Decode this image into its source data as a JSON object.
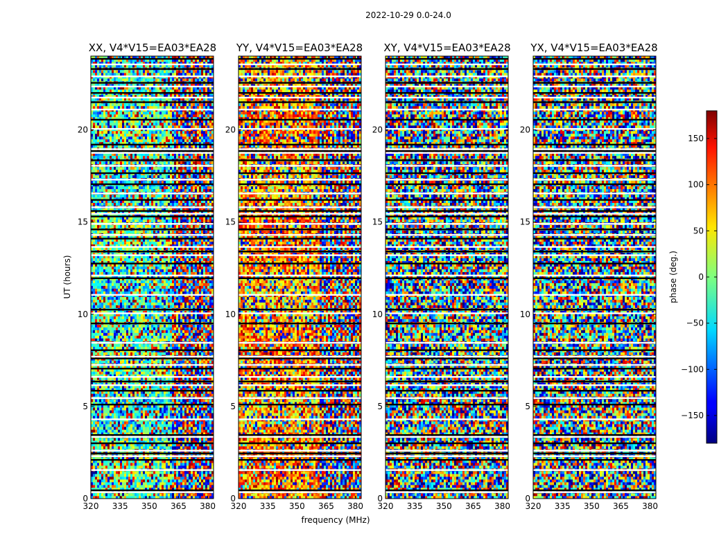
{
  "figure": {
    "suptitle": "2022-10-29 0.0-24.0"
  },
  "chart_data": [
    {
      "type": "heatmap",
      "title": "XX, V4*V15=EA03*EA28",
      "xlabel": "",
      "ylabel": "UT (hours)",
      "xlim": [
        320,
        383
      ],
      "ylim": [
        0,
        24
      ],
      "xticks": [
        "320",
        "335",
        "350",
        "365",
        "380"
      ],
      "yticks": [
        "0",
        "5",
        "10",
        "15",
        "20"
      ],
      "x": [
        320,
        335,
        350,
        365,
        380
      ],
      "y": [
        0,
        5,
        10,
        15,
        20
      ],
      "pattern": "coherent-left"
    },
    {
      "type": "heatmap",
      "title": "YY, V4*V15=EA03*EA28",
      "xlabel": "frequency (MHz)",
      "ylabel": "",
      "xlim": [
        320,
        383
      ],
      "ylim": [
        0,
        24
      ],
      "xticks": [
        "320",
        "335",
        "350",
        "365",
        "380"
      ],
      "yticks": [
        "0",
        "5",
        "10",
        "15",
        "20"
      ],
      "x": [
        320,
        335,
        350,
        365,
        380
      ],
      "y": [
        0,
        5,
        10,
        15,
        20
      ],
      "pattern": "coherent-left-warm"
    },
    {
      "type": "heatmap",
      "title": "XY, V4*V15=EA03*EA28",
      "xlabel": "",
      "ylabel": "",
      "xlim": [
        320,
        383
      ],
      "ylim": [
        0,
        24
      ],
      "xticks": [
        "320",
        "335",
        "350",
        "365",
        "380"
      ],
      "yticks": [
        "0",
        "5",
        "10",
        "15",
        "20"
      ],
      "x": [
        320,
        335,
        350,
        365,
        380
      ],
      "y": [
        0,
        5,
        10,
        15,
        20
      ],
      "pattern": "noise"
    },
    {
      "type": "heatmap",
      "title": "YX, V4*V15=EA03*EA28",
      "xlabel": "",
      "ylabel": "",
      "xlim": [
        320,
        383
      ],
      "ylim": [
        0,
        24
      ],
      "xticks": [
        "320",
        "335",
        "350",
        "365",
        "380"
      ],
      "yticks": [
        "0",
        "5",
        "10",
        "15",
        "20"
      ],
      "x": [
        320,
        335,
        350,
        365,
        380
      ],
      "y": [
        0,
        5,
        10,
        15,
        20
      ],
      "pattern": "noise"
    }
  ],
  "colorbar": {
    "label": "phase (deg.)",
    "range": [
      -180,
      180
    ],
    "ticks": [
      150,
      100,
      50,
      0,
      -50,
      -100,
      -150
    ],
    "tick_labels": [
      "150",
      "100",
      "50",
      "0",
      "−50",
      "−100",
      "−150"
    ],
    "colormap": "jet"
  },
  "flagged_rows_hours": [
    0.35,
    0.45,
    1.55,
    2.1,
    2.3,
    2.45,
    2.6,
    3.0,
    3.35,
    3.45,
    4.3,
    5.1,
    5.45,
    5.85,
    6.15,
    6.35,
    6.6,
    7.05,
    7.25,
    7.6,
    7.7,
    8.05,
    8.45,
    9.5,
    10.05,
    10.25,
    11.05,
    11.95,
    12.1,
    12.75,
    13.2,
    13.4,
    13.65,
    14.1,
    14.3,
    14.6,
    14.9,
    15.3,
    15.45,
    15.6,
    15.8,
    16.2,
    16.55,
    17.05,
    17.3,
    17.65,
    18.05,
    18.35,
    18.75,
    18.85,
    18.95,
    19.2,
    20.05,
    20.55,
    21.1,
    21.5,
    21.75,
    22.0,
    22.35,
    22.55,
    22.9,
    23.3,
    23.55,
    23.85
  ],
  "flag_colors": [
    "#ffffff",
    "#000000"
  ]
}
